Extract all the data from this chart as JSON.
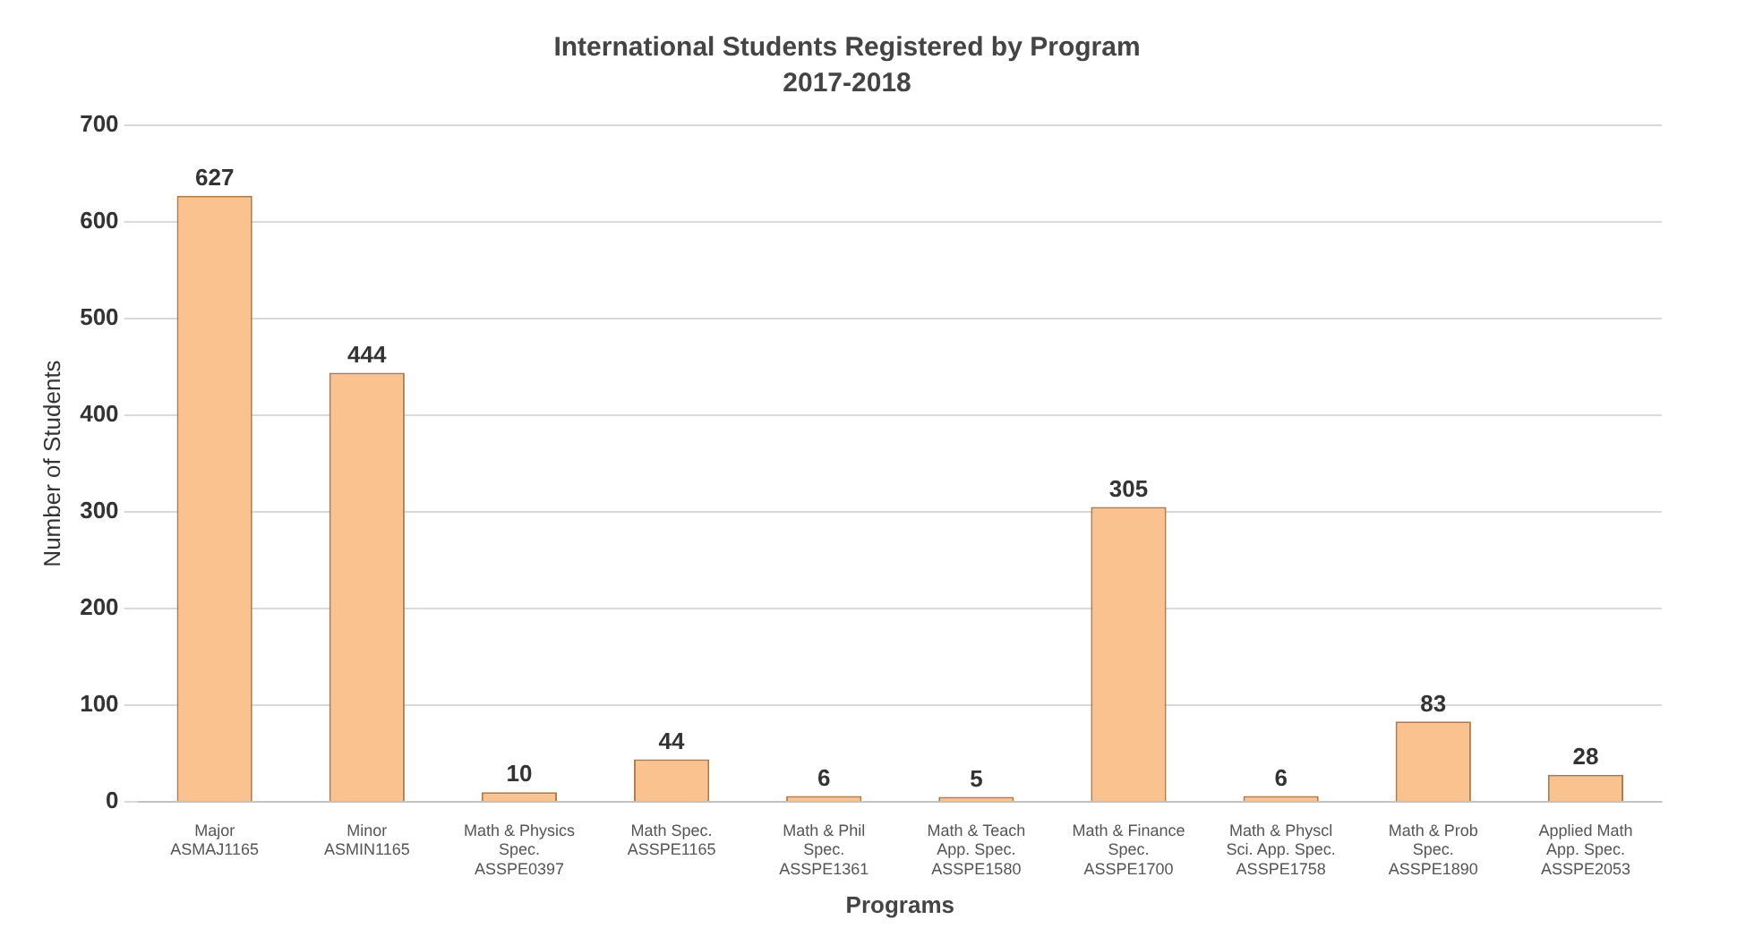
{
  "chart_data": {
    "type": "bar",
    "title": "International Students Registered by Program",
    "subtitle": "2017-2018",
    "xlabel": "Programs",
    "ylabel": "Number of Students",
    "categories": [
      "Major\nASMAJ1165",
      "Minor\nASMIN1165",
      "Math & Physics Spec.\nASSPE0397",
      "Math Spec.\nASSPE1165",
      "Math & Phil Spec.\nASSPE1361",
      "Math & Teach App. Spec.\nASSPE1580",
      "Math & Finance Spec.\nASSPE1700",
      "Math & Physcl Sci. App. Spec.\nASSPE1758",
      "Math & Prob Spec.\nASSPE1890",
      "Applied Math App. Spec.\nASSPE2053"
    ],
    "values": [
      627,
      444,
      10,
      44,
      6,
      5,
      305,
      6,
      83,
      28
    ],
    "color": "#f9c28f",
    "ylim": [
      0,
      700
    ],
    "yticks": [
      0,
      100,
      200,
      300,
      400,
      500,
      600,
      700
    ],
    "grid": "y",
    "data_labels": true
  }
}
